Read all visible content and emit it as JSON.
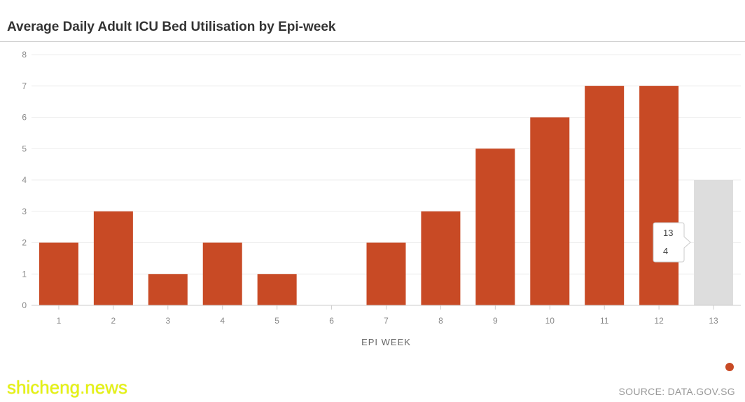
{
  "title": "Average Daily Adult ICU Bed Utilisation by Epi-week",
  "source": "SOURCE: DATA.GOV.SG",
  "watermark": "shicheng.news",
  "colors": {
    "bar": "#c84a25",
    "bar_highlight": "#dddddd",
    "grid": "#eeeeee",
    "axis": "#cccccc"
  },
  "chart_data": {
    "type": "bar",
    "categories": [
      "1",
      "2",
      "3",
      "4",
      "5",
      "6",
      "7",
      "8",
      "9",
      "10",
      "11",
      "12",
      "13"
    ],
    "values": [
      2,
      3,
      1,
      2,
      1,
      0,
      2,
      3,
      5,
      6,
      7,
      7,
      4
    ],
    "xlabel": "EPI WEEK",
    "ylabel": "",
    "ylim": [
      0,
      8
    ],
    "yticks": [
      0,
      1,
      2,
      3,
      4,
      5,
      6,
      7,
      8
    ],
    "highlighted_index": 12,
    "grid": true,
    "legend": "bottom-right",
    "tooltip": {
      "category": "13",
      "value": "4"
    }
  }
}
